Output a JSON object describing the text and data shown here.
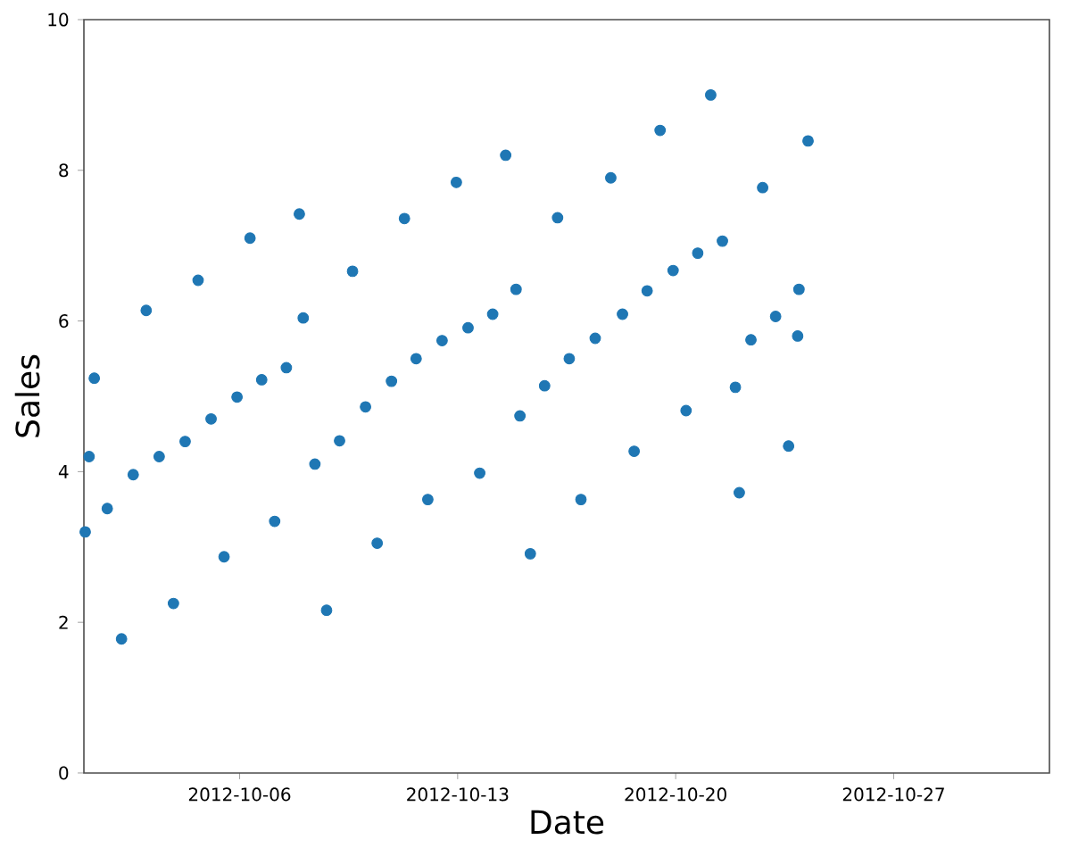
{
  "chart_data": {
    "type": "scatter",
    "xlabel": "Date",
    "ylabel": "Sales",
    "x": [
      "2012-10-01T01:00",
      "2012-10-01T04:00",
      "2012-10-01T08:00",
      "2012-10-01T18:00",
      "2012-10-02T05:00",
      "2012-10-02T14:00",
      "2012-10-03T00:00",
      "2012-10-03T10:00",
      "2012-10-03T21:00",
      "2012-10-04T06:00",
      "2012-10-04T16:00",
      "2012-10-05T02:00",
      "2012-10-05T12:00",
      "2012-10-05T22:00",
      "2012-10-06T08:00",
      "2012-10-06T17:00",
      "2012-10-07T03:00",
      "2012-10-07T12:00",
      "2012-10-07T22:00",
      "2012-10-08T01:00",
      "2012-10-08T10:00",
      "2012-10-08T19:00",
      "2012-10-09T05:00",
      "2012-10-09T15:00",
      "2012-10-10T01:00",
      "2012-10-10T10:00",
      "2012-10-10T21:00",
      "2012-10-11T07:00",
      "2012-10-11T16:00",
      "2012-10-12T01:00",
      "2012-10-12T12:00",
      "2012-10-12T23:00",
      "2012-10-13T08:00",
      "2012-10-13T17:00",
      "2012-10-14T03:00",
      "2012-10-14T13:00",
      "2012-10-14T21:00",
      "2012-10-15T00:00",
      "2012-10-15T08:00",
      "2012-10-15T19:00",
      "2012-10-16T05:00",
      "2012-10-16T14:00",
      "2012-10-16T23:00",
      "2012-10-17T10:00",
      "2012-10-17T22:00",
      "2012-10-18T07:00",
      "2012-10-18T16:00",
      "2012-10-19T02:00",
      "2012-10-19T12:00",
      "2012-10-19T22:00",
      "2012-10-20T08:00",
      "2012-10-20T17:00",
      "2012-10-21T03:00",
      "2012-10-21T12:00",
      "2012-10-21T22:00",
      "2012-10-22T01:00",
      "2012-10-22T10:00",
      "2012-10-22T19:00",
      "2012-10-23T05:00",
      "2012-10-23T15:00",
      "2012-10-23T22:00",
      "2012-10-23T23:00",
      "2012-10-24T06:00"
    ],
    "values": [
      3.2,
      4.2,
      5.24,
      3.51,
      1.78,
      3.96,
      6.14,
      4.2,
      2.25,
      4.4,
      6.54,
      4.7,
      2.87,
      4.99,
      7.1,
      5.22,
      3.34,
      5.38,
      7.42,
      6.04,
      4.1,
      2.16,
      4.41,
      6.66,
      4.86,
      3.05,
      5.2,
      7.36,
      5.5,
      3.63,
      5.74,
      7.84,
      5.91,
      3.98,
      6.09,
      8.2,
      6.42,
      4.74,
      2.91,
      5.14,
      7.37,
      5.5,
      3.63,
      5.77,
      7.9,
      6.09,
      4.27,
      6.4,
      8.53,
      6.67,
      4.81,
      6.9,
      9.0,
      7.06,
      5.12,
      3.72,
      5.75,
      7.77,
      6.06,
      4.34,
      5.8,
      6.42,
      8.39
    ],
    "color": "#1f77b4",
    "marker": "circle",
    "xlim": [
      "2012-10-01",
      "2012-11-01"
    ],
    "xticks": [
      "2012-10-06",
      "2012-10-13",
      "2012-10-20",
      "2012-10-27"
    ],
    "ylim": [
      0,
      10
    ],
    "yticks": [
      0,
      2,
      4,
      6,
      8,
      10
    ]
  }
}
